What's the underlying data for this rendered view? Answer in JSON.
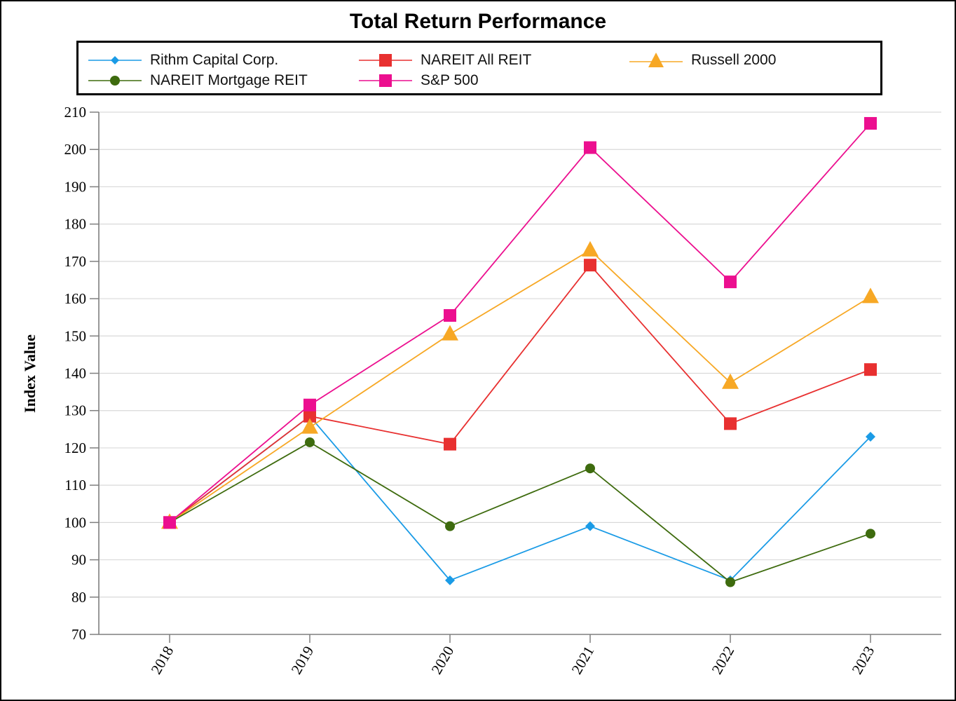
{
  "chart_data": {
    "type": "line",
    "title": "Total Return Performance",
    "xlabel": "",
    "ylabel": "Index Value",
    "categories": [
      "2018",
      "2019",
      "2020",
      "2021",
      "2022",
      "2023"
    ],
    "ylim": [
      70,
      210
    ],
    "yticks": [
      "210",
      "200",
      "190",
      "180",
      "170",
      "160",
      "150",
      "140",
      "130",
      "120",
      "110",
      "100",
      "90",
      "80",
      "70"
    ],
    "grid": "horizontal",
    "legend_position": "top",
    "series": [
      {
        "name": "Rithm Capital Corp.",
        "color": "#1a9be6",
        "marker": "diamond",
        "values": [
          100,
          128.5,
          84.5,
          99,
          84.5,
          123
        ]
      },
      {
        "name": "NAREIT All REIT",
        "color": "#e83030",
        "marker": "square",
        "values": [
          100,
          128.5,
          121,
          169,
          126.5,
          141
        ]
      },
      {
        "name": "Russell 2000",
        "color": "#f7a825",
        "marker": "triangle",
        "values": [
          100,
          125.5,
          150.5,
          173,
          137.5,
          160.5
        ]
      },
      {
        "name": "NAREIT Mortgage REIT",
        "color": "#3e6b0e",
        "marker": "circle",
        "values": [
          100,
          121.5,
          99,
          114.5,
          84,
          97
        ]
      },
      {
        "name": "S&P 500",
        "color": "#ec0f8f",
        "marker": "square",
        "values": [
          100,
          131.5,
          155.5,
          200.5,
          164.5,
          207
        ]
      }
    ]
  }
}
